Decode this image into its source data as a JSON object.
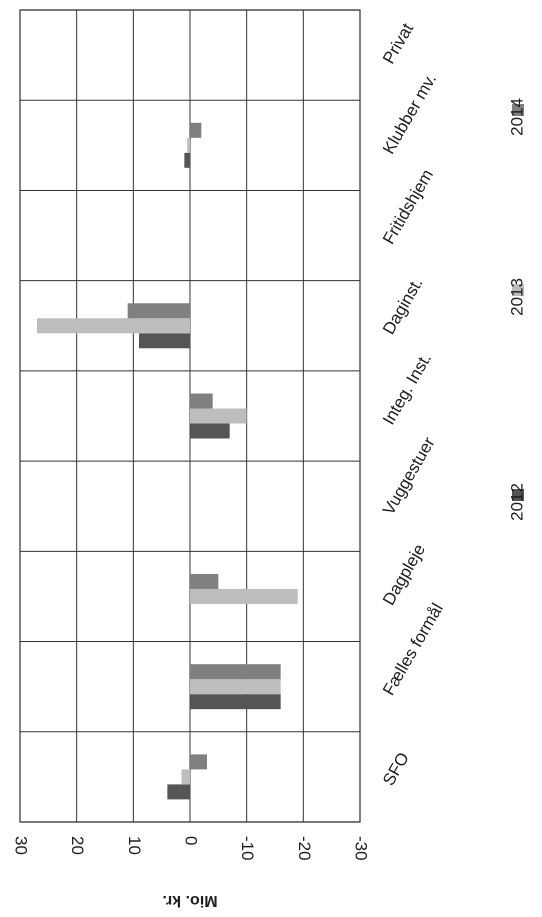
{
  "chart_data": {
    "type": "bar",
    "orientation": "horizontal",
    "categories": [
      "SFO",
      "Fælles formål",
      "Dagpleje",
      "Vuggestuer",
      "Integ. Inst.",
      "Daginst.",
      "Fritidshjem",
      "Klubber mv.",
      "Privat"
    ],
    "series": [
      {
        "name": "2012",
        "color": "#555555",
        "values": [
          4,
          -16,
          0,
          0,
          -7,
          9,
          0,
          1,
          0
        ]
      },
      {
        "name": "2013",
        "color": "#bdbdbd",
        "values": [
          1.5,
          -16,
          -19,
          0,
          -10,
          27,
          0,
          0.5,
          0
        ]
      },
      {
        "name": "2014",
        "color": "#808080",
        "values": [
          -3,
          -16,
          -5,
          0,
          -4,
          11,
          0,
          -2,
          0
        ]
      }
    ],
    "ylabel": "Mio. kr.",
    "ylim": [
      -30,
      30
    ],
    "ticks": [
      30,
      20,
      10,
      0,
      -10,
      -20,
      -30
    ],
    "tick_labels": [
      "30",
      "20",
      "10",
      "0",
      "-10",
      "-20",
      "-30"
    ],
    "grid": true,
    "legend": "bottom"
  }
}
